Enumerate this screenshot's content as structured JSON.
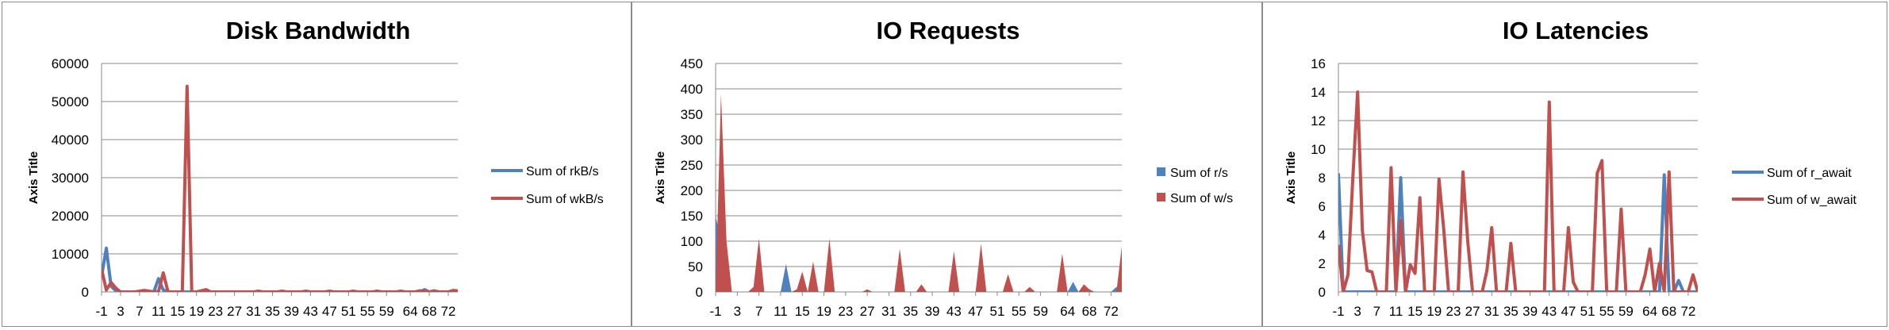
{
  "chart_data": [
    {
      "type": "line",
      "title": "Disk Bandwidth",
      "ylabel": "Axis Title",
      "xlabel": "",
      "ylim": [
        0,
        60000
      ],
      "yticks": [
        0,
        10000,
        20000,
        30000,
        40000,
        50000,
        60000
      ],
      "x": [
        -1,
        0,
        1,
        2,
        3,
        4,
        5,
        6,
        7,
        8,
        9,
        10,
        11,
        12,
        13,
        14,
        15,
        16,
        17,
        18,
        19,
        20,
        21,
        22,
        23,
        24,
        25,
        26,
        27,
        28,
        29,
        30,
        31,
        32,
        33,
        34,
        35,
        36,
        37,
        38,
        39,
        40,
        41,
        42,
        43,
        44,
        45,
        46,
        47,
        48,
        49,
        50,
        51,
        52,
        53,
        54,
        55,
        56,
        57,
        58,
        59,
        60,
        61,
        62,
        63,
        64,
        65,
        66,
        67,
        68,
        69,
        70,
        71,
        72,
        73,
        74
      ],
      "xticks": [
        -1,
        3,
        7,
        11,
        15,
        19,
        23,
        27,
        31,
        35,
        39,
        43,
        47,
        51,
        55,
        59,
        64,
        68,
        72
      ],
      "grid": true,
      "legend_position": "right",
      "series": [
        {
          "name": "Sum of rkB/s",
          "color": "#4f81bd",
          "values": [
            4000,
            11500,
            1500,
            300,
            0,
            0,
            0,
            0,
            0,
            0,
            100,
            0,
            3500,
            500,
            0,
            0,
            0,
            0,
            0,
            0,
            0,
            0,
            0,
            0,
            0,
            0,
            0,
            0,
            0,
            0,
            0,
            0,
            0,
            0,
            0,
            0,
            0,
            0,
            0,
            0,
            0,
            0,
            0,
            0,
            0,
            0,
            0,
            0,
            0,
            0,
            0,
            0,
            0,
            0,
            0,
            0,
            0,
            0,
            0,
            0,
            0,
            0,
            0,
            0,
            0,
            0,
            0,
            0,
            600,
            0,
            0,
            0,
            0,
            0,
            0,
            0
          ]
        },
        {
          "name": "Sum of wkB/s",
          "color": "#c0504d",
          "values": [
            6000,
            500,
            2500,
            1000,
            0,
            0,
            0,
            0,
            200,
            400,
            200,
            0,
            100,
            5000,
            0,
            0,
            0,
            0,
            54000,
            0,
            0,
            300,
            600,
            0,
            0,
            0,
            0,
            0,
            0,
            0,
            0,
            0,
            0,
            200,
            0,
            0,
            0,
            0,
            200,
            0,
            0,
            0,
            0,
            200,
            0,
            0,
            0,
            0,
            200,
            0,
            0,
            0,
            0,
            200,
            0,
            0,
            0,
            0,
            200,
            0,
            0,
            0,
            0,
            200,
            0,
            0,
            0,
            300,
            200,
            0,
            300,
            0,
            0,
            0,
            400,
            300
          ]
        }
      ]
    },
    {
      "type": "area",
      "title": "IO Requests",
      "ylabel": "Axis Title",
      "xlabel": "",
      "ylim": [
        0,
        450
      ],
      "yticks": [
        0,
        50,
        100,
        150,
        200,
        250,
        300,
        350,
        400,
        450
      ],
      "x": [
        -1,
        0,
        1,
        2,
        3,
        4,
        5,
        6,
        7,
        8,
        9,
        10,
        11,
        12,
        13,
        14,
        15,
        16,
        17,
        18,
        19,
        20,
        21,
        22,
        23,
        24,
        25,
        26,
        27,
        28,
        29,
        30,
        31,
        32,
        33,
        34,
        35,
        36,
        37,
        38,
        39,
        40,
        41,
        42,
        43,
        44,
        45,
        46,
        47,
        48,
        49,
        50,
        51,
        52,
        53,
        54,
        55,
        56,
        57,
        58,
        59,
        60,
        61,
        62,
        63,
        64,
        65,
        66,
        67,
        68,
        69,
        70,
        71,
        72,
        73,
        74
      ],
      "xticks": [
        -1,
        3,
        7,
        11,
        15,
        19,
        23,
        27,
        31,
        35,
        39,
        43,
        47,
        51,
        55,
        59,
        64,
        68,
        72
      ],
      "grid": true,
      "legend_position": "right",
      "series": [
        {
          "name": "Sum of r/s",
          "color": "#4f81bd",
          "values": [
            150,
            100,
            0,
            0,
            0,
            0,
            0,
            0,
            0,
            0,
            0,
            0,
            0,
            55,
            0,
            0,
            0,
            0,
            0,
            0,
            0,
            0,
            0,
            0,
            0,
            0,
            0,
            0,
            0,
            0,
            0,
            0,
            0,
            0,
            0,
            0,
            0,
            0,
            0,
            0,
            0,
            0,
            0,
            0,
            0,
            0,
            0,
            0,
            0,
            0,
            0,
            0,
            0,
            0,
            0,
            0,
            0,
            0,
            0,
            0,
            0,
            0,
            0,
            0,
            0,
            0,
            20,
            0,
            0,
            0,
            0,
            0,
            0,
            0,
            10,
            0
          ]
        },
        {
          "name": "Sum of w/s",
          "color": "#c0504d",
          "values": [
            0,
            390,
            100,
            0,
            0,
            0,
            0,
            10,
            105,
            0,
            0,
            0,
            0,
            0,
            0,
            5,
            40,
            0,
            60,
            0,
            0,
            105,
            0,
            0,
            0,
            0,
            0,
            0,
            5,
            0,
            0,
            0,
            0,
            0,
            85,
            0,
            0,
            0,
            15,
            0,
            0,
            0,
            0,
            0,
            80,
            0,
            0,
            0,
            0,
            95,
            0,
            0,
            0,
            0,
            35,
            0,
            0,
            0,
            10,
            0,
            0,
            0,
            0,
            0,
            75,
            0,
            0,
            0,
            15,
            5,
            0,
            0,
            0,
            0,
            0,
            90
          ]
        }
      ]
    },
    {
      "type": "line",
      "title": "IO Latencies",
      "ylabel": "Axis Title",
      "xlabel": "",
      "ylim": [
        0,
        16
      ],
      "yticks": [
        0,
        2,
        4,
        6,
        8,
        10,
        12,
        14,
        16
      ],
      "x": [
        -1,
        0,
        1,
        2,
        3,
        4,
        5,
        6,
        7,
        8,
        9,
        10,
        11,
        12,
        13,
        14,
        15,
        16,
        17,
        18,
        19,
        20,
        21,
        22,
        23,
        24,
        25,
        26,
        27,
        28,
        29,
        30,
        31,
        32,
        33,
        34,
        35,
        36,
        37,
        38,
        39,
        40,
        41,
        42,
        43,
        44,
        45,
        46,
        47,
        48,
        49,
        50,
        51,
        52,
        53,
        54,
        55,
        56,
        57,
        58,
        59,
        60,
        61,
        62,
        63,
        64,
        65,
        66,
        67,
        68,
        69,
        70,
        71,
        72,
        73,
        74
      ],
      "xticks": [
        -1,
        3,
        7,
        11,
        15,
        19,
        23,
        27,
        31,
        35,
        39,
        43,
        47,
        51,
        55,
        59,
        64,
        68,
        72
      ],
      "grid": true,
      "legend_position": "right",
      "series": [
        {
          "name": "Sum of r_await",
          "color": "#4f81bd",
          "values": [
            8.3,
            0,
            0,
            0,
            0,
            0,
            0,
            0,
            0,
            0,
            0,
            0,
            0,
            8.0,
            0,
            0,
            0,
            0,
            0,
            0,
            0,
            0,
            0,
            0,
            0,
            0,
            0,
            0,
            0,
            0,
            0,
            0,
            0,
            0,
            0,
            0,
            0,
            0,
            0,
            0,
            0,
            0,
            0,
            0,
            0,
            0,
            0,
            0,
            0,
            0,
            0,
            0,
            0,
            0,
            0,
            0,
            0,
            0,
            0,
            0,
            0,
            0,
            0,
            0,
            0,
            0,
            0,
            0,
            8.2,
            0,
            0,
            0.8,
            0,
            0,
            0,
            0
          ]
        },
        {
          "name": "Sum of w_await",
          "color": "#c0504d",
          "values": [
            3.3,
            0,
            1.2,
            7.9,
            14.0,
            4.3,
            1.5,
            1.4,
            0,
            0,
            0,
            8.7,
            0,
            5.0,
            0,
            1.9,
            1.3,
            6.6,
            0,
            0,
            0,
            7.9,
            4.3,
            0,
            0,
            0,
            8.4,
            3.5,
            0,
            0,
            0,
            1.5,
            4.5,
            0,
            0,
            0,
            3.4,
            0,
            0,
            0,
            0,
            0,
            0,
            0,
            13.3,
            0,
            0,
            0,
            4.5,
            0.7,
            0,
            0,
            0,
            0,
            8.3,
            9.2,
            0,
            0,
            0,
            5.8,
            0,
            0,
            0,
            0,
            1.2,
            3.0,
            0,
            2.0,
            0,
            8.4,
            0,
            0,
            0,
            0,
            1.2,
            0
          ]
        }
      ]
    }
  ]
}
